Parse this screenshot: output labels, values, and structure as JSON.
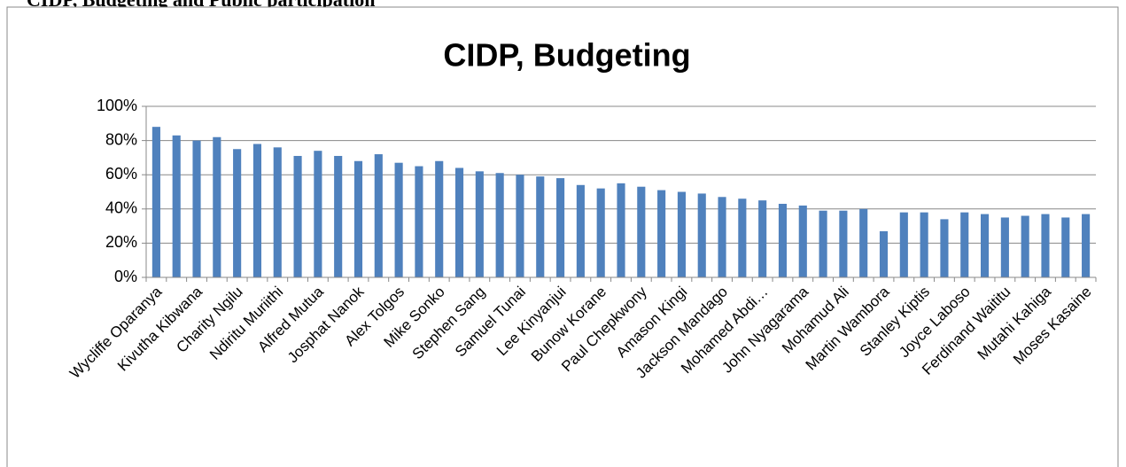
{
  "heading": "CIDP, Budgeting and Public participation",
  "chart_data": {
    "type": "bar",
    "title": "CIDP, Budgeting",
    "categories": [
      "Wycliffe Oparanya",
      null,
      "Kivutha Kibwana",
      null,
      "Charity Ngilu",
      null,
      "Ndiritu Muriithi",
      null,
      "Alfred Mutua",
      null,
      "Josphat Nanok",
      null,
      "Alex Tolgos",
      null,
      "Mike Sonko",
      null,
      "Stephen  Sang",
      null,
      "Samuel Tunai",
      null,
      "Lee Kinyanjui",
      null,
      "Bunow Korane",
      null,
      "Paul Chepkwony",
      null,
      "Amason Kingi",
      null,
      "Jackson  Mandago",
      null,
      "Mohamed Abdi…",
      null,
      "John Nyagarama",
      null,
      "Mohamud Ali",
      null,
      "Martin Wambora",
      null,
      "Stanley Kiptis",
      null,
      "Joyce Laboso",
      null,
      "Ferdinand Waititu",
      null,
      "Mutahi Kahiga",
      null,
      "Moses Kasaine"
    ],
    "values": [
      88,
      83,
      80,
      82,
      75,
      78,
      76,
      71,
      74,
      71,
      68,
      72,
      67,
      65,
      68,
      64,
      62,
      61,
      60,
      59,
      58,
      54,
      52,
      55,
      53,
      51,
      50,
      49,
      47,
      46,
      45,
      43,
      42,
      39,
      39,
      40,
      27,
      38,
      38,
      34,
      38,
      37,
      35,
      36,
      37,
      35,
      37
    ],
    "color": "#4f81bd",
    "ylim": [
      0,
      100
    ],
    "yticks": [
      {
        "value": 0,
        "label": "0%"
      },
      {
        "value": 20,
        "label": "20%"
      },
      {
        "value": 40,
        "label": "40%"
      },
      {
        "value": 60,
        "label": "60%"
      },
      {
        "value": 80,
        "label": "80%"
      },
      {
        "value": 100,
        "label": "100%"
      }
    ],
    "grid": true
  }
}
